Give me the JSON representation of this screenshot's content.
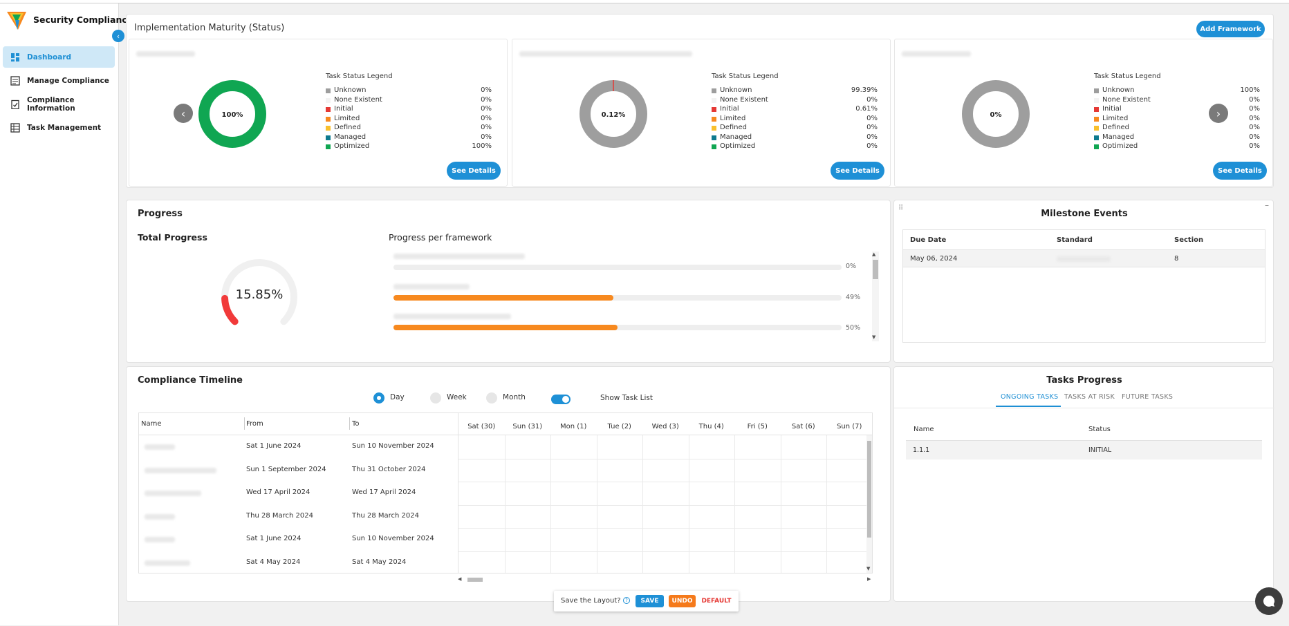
{
  "app": {
    "title": "Security Compliance"
  },
  "nav": [
    {
      "label": "Dashboard",
      "icon": "dashboard-icon",
      "active": true
    },
    {
      "label": "Manage Compliance",
      "icon": "list-icon",
      "active": false
    },
    {
      "label": "Compliance Information",
      "icon": "clipboard-check-icon",
      "active": false
    },
    {
      "label": "Task Management",
      "icon": "table-icon",
      "active": false
    }
  ],
  "maturity": {
    "title": "Implementation Maturity (Status)",
    "add_button": "Add Framework",
    "cards": [
      {
        "center": "100%",
        "legend_title": "Task Status Legend",
        "values": [
          "0%",
          "0%",
          "0%",
          "0%",
          "0%",
          "0%",
          "100%"
        ],
        "see_details": "See Details",
        "fraction_optimized": 1.0,
        "fraction_initial": 0
      },
      {
        "center": "0.12%",
        "legend_title": "Task Status Legend",
        "values": [
          "99.39%",
          "0%",
          "0.61%",
          "0%",
          "0%",
          "0%",
          "0%"
        ],
        "see_details": "See Details",
        "fraction_optimized": 0,
        "fraction_initial": 0.0061
      },
      {
        "center": "0%",
        "legend_title": "Task Status Legend",
        "values": [
          "100%",
          "0%",
          "0%",
          "0%",
          "0%",
          "0%",
          "0%"
        ],
        "see_details": "See Details",
        "fraction_optimized": 0,
        "fraction_initial": 0
      }
    ],
    "legend_labels": [
      "Unknown",
      "None Existent",
      "Initial",
      "Limited",
      "Defined",
      "Managed",
      "Optimized"
    ],
    "legend_colors": [
      "#9e9e9e",
      "#f3f3f3",
      "#e53935",
      "#f7891f",
      "#f9c02c",
      "#0d7a8f",
      "#10a652"
    ]
  },
  "progress": {
    "title": "Progress",
    "total_label": "Total Progress",
    "total_value": "15.85%",
    "total_fraction": 0.1585,
    "per_framework_label": "Progress per framework",
    "bars": [
      {
        "pct": "0%",
        "fraction": 0
      },
      {
        "pct": "49%",
        "fraction": 0.49
      },
      {
        "pct": "50%",
        "fraction": 0.5
      }
    ]
  },
  "milestones": {
    "title": "Milestone Events",
    "headers": [
      "Due Date",
      "Standard",
      "Section"
    ],
    "rows": [
      {
        "date": "May 06, 2024",
        "section": "8"
      }
    ]
  },
  "timeline": {
    "title": "Compliance Timeline",
    "options": [
      "Day",
      "Week",
      "Month"
    ],
    "selected": "Day",
    "show_task_list": "Show Task List",
    "headers": [
      "Name",
      "From",
      "To"
    ],
    "rows": [
      {
        "from": "Sat 1 June 2024",
        "to": "Sun 10 November 2024"
      },
      {
        "from": "Sun 1 September 2024",
        "to": "Thu 31 October 2024"
      },
      {
        "from": "Wed 17 April 2024",
        "to": "Wed 17 April 2024"
      },
      {
        "from": "Thu 28 March 2024",
        "to": "Thu 28 March 2024"
      },
      {
        "from": "Sat 1 June 2024",
        "to": "Sun 10 November 2024"
      },
      {
        "from": "Sat 4 May 2024",
        "to": "Sat 4 May 2024"
      }
    ],
    "days": [
      "Sat (30)",
      "Sun (31)",
      "Mon (1)",
      "Tue (2)",
      "Wed (3)",
      "Thu (4)",
      "Fri (5)",
      "Sat (6)",
      "Sun (7)"
    ]
  },
  "tasks": {
    "title": "Tasks Progress",
    "tabs": [
      "ONGOING TASKS",
      "TASKS AT RISK",
      "FUTURE TASKS"
    ],
    "headers": [
      "Name",
      "Status"
    ],
    "rows": [
      {
        "name": "1.1.1",
        "status": "INITIAL"
      }
    ]
  },
  "layout_bar": {
    "label": "Save the Layout?",
    "save": "SAVE",
    "undo": "UNDO",
    "default": "DEFAULT"
  }
}
